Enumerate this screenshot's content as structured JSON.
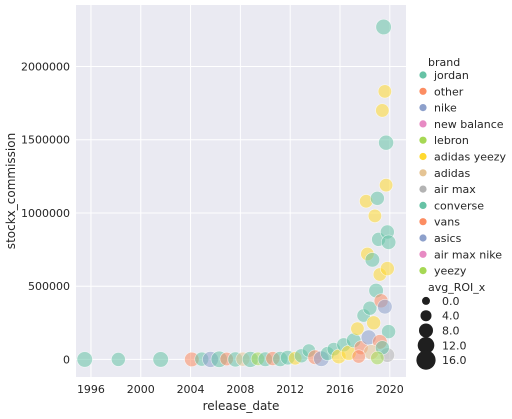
{
  "chart_data": {
    "type": "scatter",
    "xlabel": "release_date",
    "ylabel": "stockx_commission",
    "xlim": [
      1994.8,
      2021.3
    ],
    "ylim": [
      -120000,
      2420000
    ],
    "x_ticks": [
      1996,
      2000,
      2004,
      2008,
      2012,
      2016,
      2020
    ],
    "y_ticks": [
      0,
      500000,
      1000000,
      1500000,
      2000000
    ],
    "y_tick_labels": [
      "0",
      "500000",
      "1000000",
      "1500000",
      "2000000"
    ],
    "grid": true,
    "background": "#eaeaf2",
    "legend_placement": "right",
    "legend_hue_title": "brand",
    "legend_size_title": "avg_ROI_x",
    "brands": [
      {
        "name": "jordan",
        "color": "#66c2a5"
      },
      {
        "name": "other",
        "color": "#fc8d62"
      },
      {
        "name": "nike",
        "color": "#8da0cb"
      },
      {
        "name": "new balance",
        "color": "#e78ac3"
      },
      {
        "name": "lebron",
        "color": "#a6d854"
      },
      {
        "name": "adidas yeezy",
        "color": "#ffd92f"
      },
      {
        "name": "adidas",
        "color": "#e5c494"
      },
      {
        "name": "air max",
        "color": "#b3b3b3"
      },
      {
        "name": "converse",
        "color": "#66c2a5"
      },
      {
        "name": "vans",
        "color": "#fc8d62"
      },
      {
        "name": "asics",
        "color": "#8da0cb"
      },
      {
        "name": "air max nike",
        "color": "#e78ac3"
      },
      {
        "name": "yeezy",
        "color": "#a6d854"
      }
    ],
    "size_legend": [
      {
        "label": "0.0",
        "value": 0
      },
      {
        "label": "4.0",
        "value": 4
      },
      {
        "label": "8.0",
        "value": 8
      },
      {
        "label": "12.0",
        "value": 12
      },
      {
        "label": "16.0",
        "value": 16
      }
    ],
    "points": [
      {
        "x": 1995.5,
        "y": 0,
        "brand": "jordan",
        "roi": 8
      },
      {
        "x": 1998.2,
        "y": 0,
        "brand": "jordan",
        "roi": 5
      },
      {
        "x": 2001.6,
        "y": 0,
        "brand": "jordan",
        "roi": 8
      },
      {
        "x": 2004.1,
        "y": 0,
        "brand": "other",
        "roi": 6
      },
      {
        "x": 2004.9,
        "y": 2000,
        "brand": "jordan",
        "roi": 5
      },
      {
        "x": 2005.6,
        "y": 0,
        "brand": "nike",
        "roi": 9
      },
      {
        "x": 2006.3,
        "y": 1000,
        "brand": "jordan",
        "roi": 10
      },
      {
        "x": 2006.9,
        "y": 3000,
        "brand": "other",
        "roi": 4
      },
      {
        "x": 2007.6,
        "y": 0,
        "brand": "jordan",
        "roi": 7
      },
      {
        "x": 2008.2,
        "y": 2000,
        "brand": "adidas",
        "roi": 5
      },
      {
        "x": 2008.8,
        "y": 0,
        "brand": "jordan",
        "roi": 9
      },
      {
        "x": 2009.4,
        "y": 4000,
        "brand": "lebron",
        "roi": 4
      },
      {
        "x": 2010.0,
        "y": 1000,
        "brand": "jordan",
        "roi": 6
      },
      {
        "x": 2010.6,
        "y": 6000,
        "brand": "other",
        "roi": 5
      },
      {
        "x": 2011.2,
        "y": 3000,
        "brand": "jordan",
        "roi": 7
      },
      {
        "x": 2011.8,
        "y": 12000,
        "brand": "jordan",
        "roi": 6
      },
      {
        "x": 2012.4,
        "y": 8000,
        "brand": "adidas yeezy",
        "roi": 4
      },
      {
        "x": 2012.9,
        "y": 25000,
        "brand": "jordan",
        "roi": 5
      },
      {
        "x": 2013.5,
        "y": 60000,
        "brand": "jordan",
        "roi": 4
      },
      {
        "x": 2014.0,
        "y": 15000,
        "brand": "other",
        "roi": 6
      },
      {
        "x": 2014.5,
        "y": 5000,
        "brand": "nike",
        "roi": 8
      },
      {
        "x": 2015.0,
        "y": 40000,
        "brand": "jordan",
        "roi": 5
      },
      {
        "x": 2015.5,
        "y": 70000,
        "brand": "jordan",
        "roi": 4
      },
      {
        "x": 2015.9,
        "y": 20000,
        "brand": "adidas yeezy",
        "roi": 6
      },
      {
        "x": 2016.3,
        "y": 100000,
        "brand": "jordan",
        "roi": 5
      },
      {
        "x": 2016.7,
        "y": 45000,
        "brand": "adidas yeezy",
        "roi": 7
      },
      {
        "x": 2017.1,
        "y": 130000,
        "brand": "jordan",
        "roi": 6
      },
      {
        "x": 2017.4,
        "y": 210000,
        "brand": "adidas yeezy",
        "roi": 4
      },
      {
        "x": 2017.7,
        "y": 80000,
        "brand": "other",
        "roi": 5
      },
      {
        "x": 2017.9,
        "y": 300000,
        "brand": "jordan",
        "roi": 4
      },
      {
        "x": 2018.1,
        "y": 1080000,
        "brand": "adidas yeezy",
        "roi": 4
      },
      {
        "x": 2018.2,
        "y": 720000,
        "brand": "adidas yeezy",
        "roi": 4
      },
      {
        "x": 2018.3,
        "y": 150000,
        "brand": "nike",
        "roi": 7
      },
      {
        "x": 2018.4,
        "y": 350000,
        "brand": "jordan",
        "roi": 5
      },
      {
        "x": 2018.6,
        "y": 680000,
        "brand": "jordan",
        "roi": 6
      },
      {
        "x": 2018.7,
        "y": 250000,
        "brand": "adidas yeezy",
        "roi": 5
      },
      {
        "x": 2018.8,
        "y": 980000,
        "brand": "adidas yeezy",
        "roi": 4
      },
      {
        "x": 2018.9,
        "y": 470000,
        "brand": "jordan",
        "roi": 6
      },
      {
        "x": 2019.0,
        "y": 1100000,
        "brand": "jordan",
        "roi": 5
      },
      {
        "x": 2019.1,
        "y": 820000,
        "brand": "jordan",
        "roi": 5
      },
      {
        "x": 2019.2,
        "y": 580000,
        "brand": "adidas yeezy",
        "roi": 4
      },
      {
        "x": 2019.3,
        "y": 400000,
        "brand": "other",
        "roi": 5
      },
      {
        "x": 2019.4,
        "y": 1700000,
        "brand": "adidas yeezy",
        "roi": 4
      },
      {
        "x": 2019.5,
        "y": 2270000,
        "brand": "jordan",
        "roi": 8
      },
      {
        "x": 2019.6,
        "y": 1830000,
        "brand": "adidas yeezy",
        "roi": 4
      },
      {
        "x": 2019.7,
        "y": 1480000,
        "brand": "jordan",
        "roi": 7
      },
      {
        "x": 2019.7,
        "y": 1190000,
        "brand": "adidas yeezy",
        "roi": 4
      },
      {
        "x": 2019.8,
        "y": 870000,
        "brand": "jordan",
        "roi": 5
      },
      {
        "x": 2019.8,
        "y": 620000,
        "brand": "adidas yeezy",
        "roi": 5
      },
      {
        "x": 2019.9,
        "y": 800000,
        "brand": "jordan",
        "roi": 6
      },
      {
        "x": 2019.6,
        "y": 360000,
        "brand": "nike",
        "roi": 6
      },
      {
        "x": 2019.9,
        "y": 190000,
        "brand": "jordan",
        "roi": 5
      },
      {
        "x": 2019.2,
        "y": 120000,
        "brand": "other",
        "roi": 6
      },
      {
        "x": 2018.5,
        "y": 50000,
        "brand": "adidas",
        "roi": 7
      },
      {
        "x": 2019.8,
        "y": 30000,
        "brand": "air max",
        "roi": 6
      },
      {
        "x": 2019.4,
        "y": 80000,
        "brand": "converse",
        "roi": 5
      },
      {
        "x": 2017.5,
        "y": 20000,
        "brand": "vans",
        "roi": 4
      },
      {
        "x": 2019.0,
        "y": 10000,
        "brand": "yeezy",
        "roi": 4
      }
    ]
  }
}
